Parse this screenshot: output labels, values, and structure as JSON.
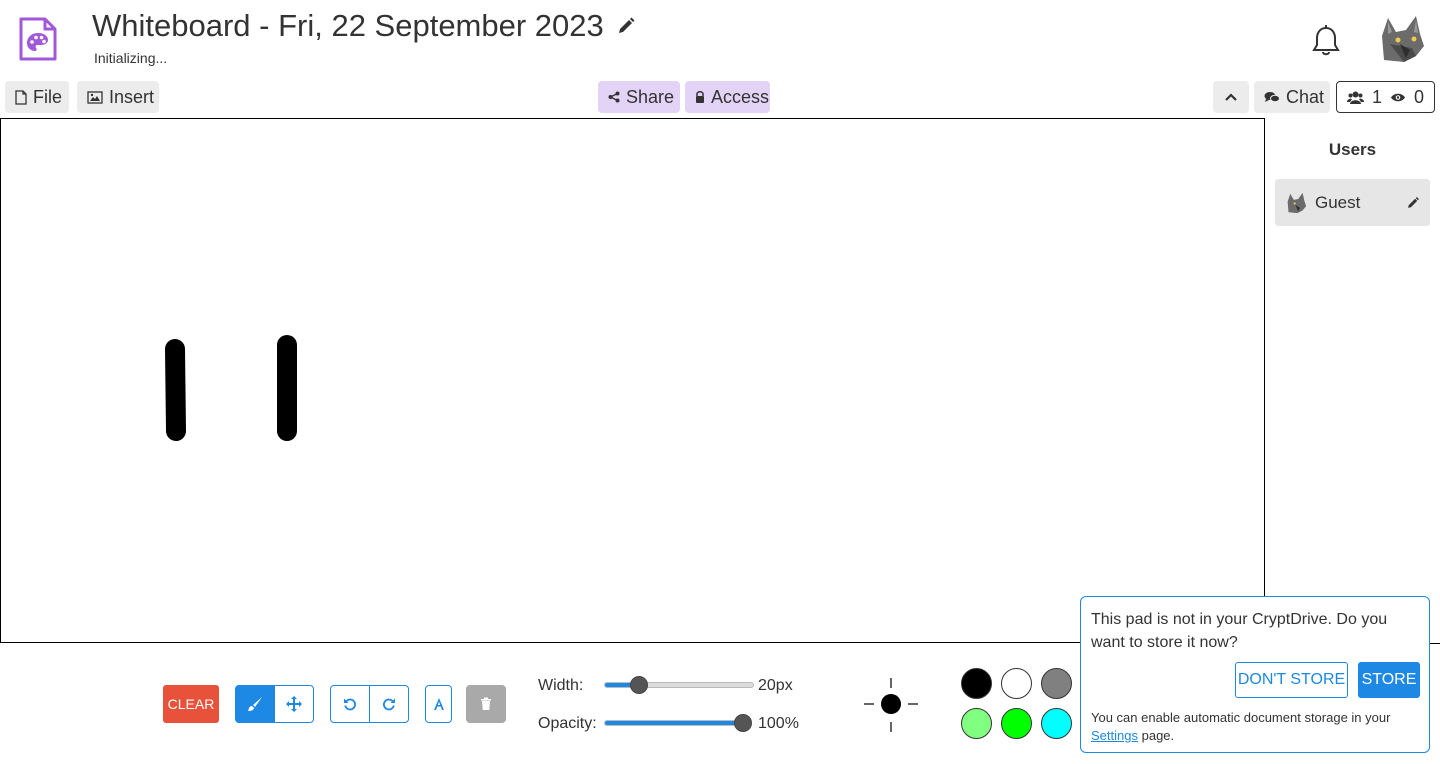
{
  "header": {
    "title": "Whiteboard - Fri, 22 September 2023",
    "status": "Initializing..."
  },
  "toolbar": {
    "file_label": "File",
    "insert_label": "Insert",
    "share_label": "Share",
    "access_label": "Access",
    "chat_label": "Chat",
    "editors_count": "1",
    "viewers_count": "0"
  },
  "users_panel": {
    "heading": "Users",
    "users": [
      {
        "name": "Guest"
      }
    ]
  },
  "tools": {
    "clear_label": "CLEAR",
    "width_label": "Width:",
    "width_value": "20px",
    "width_fraction": 0.23,
    "opacity_label": "Opacity:",
    "opacity_value": "100%",
    "opacity_fraction": 1.0,
    "brush_color": "#000000"
  },
  "palette": {
    "row1": [
      "#000000",
      "#ffffff",
      "#808080",
      "#ece8e4",
      "#f4d0d0",
      "#f2e0e0",
      "#f6ead6"
    ],
    "row2": [
      "#80ff80",
      "#00ff00",
      "#00ffff",
      "#e8e0ee",
      "#eadbeb",
      "#ecd6ec",
      "#ead8ea"
    ]
  },
  "store_popup": {
    "message": "This pad is not in your CryptDrive. Do you want to store it now?",
    "dont_store_label": "DON'T STORE",
    "store_label": "STORE",
    "note_before": "You can enable automatic document storage in your",
    "note_link": "Settings",
    "note_after": "page."
  },
  "colors": {
    "accent": "#1e88e5",
    "clear": "#e8523a",
    "purple_button": "#e3d4f7",
    "app_icon": "#a259d9"
  }
}
